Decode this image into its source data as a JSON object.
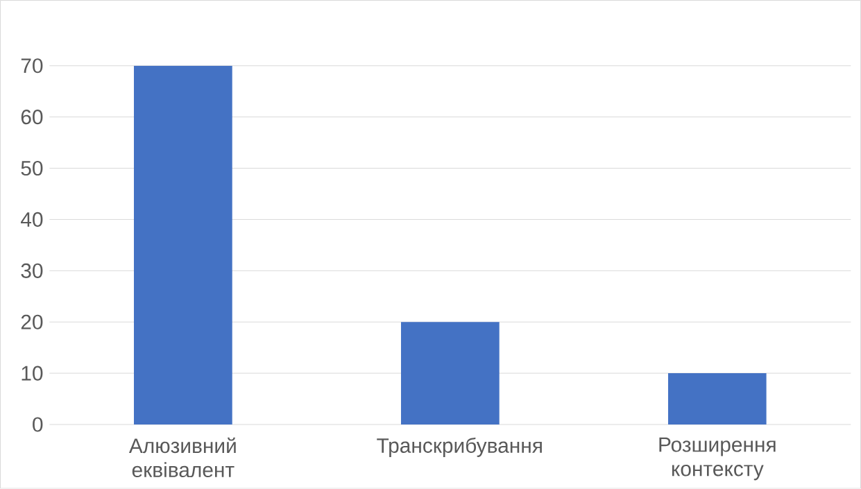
{
  "chart_data": {
    "type": "bar",
    "categories": [
      "Алюзивний еквівалент",
      "Транскрибування",
      "Розширення контексту"
    ],
    "values": [
      70,
      20,
      10
    ],
    "color": "#4472c4",
    "ylim": [
      0,
      70
    ],
    "yticks": [
      0,
      10,
      20,
      30,
      40,
      50,
      60,
      70
    ],
    "grid": "y"
  }
}
